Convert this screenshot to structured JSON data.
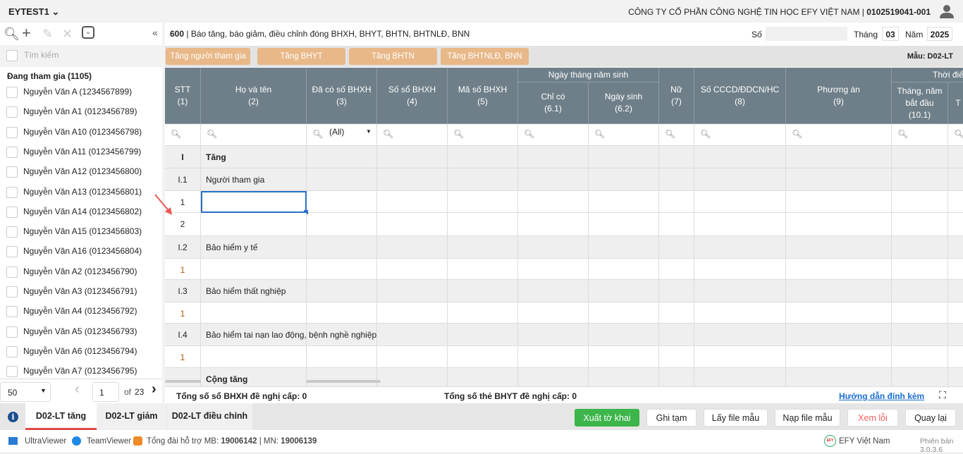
{
  "header": {
    "app_name": "EYTEST1",
    "company": "CÔNG TY CỔ PHẦN CÔNG NGHỆ TIN HỌC EFY VIỆT NAM | ",
    "tax_code": "0102519041-001"
  },
  "sidebar": {
    "search_placeholder": "Tìm kiếm",
    "group": "Đang tham gia (1105)",
    "items": [
      "Nguyễn Văn A (1234567899)",
      "Nguyễn Văn A1 (0123456789)",
      "Nguyễn Văn A10 (0123456798)",
      "Nguyễn Văn A11 (0123456799)",
      "Nguyễn Văn A12 (0123456800)",
      "Nguyễn Văn A13 (0123456801)",
      "Nguyễn Văn A14 (0123456802)",
      "Nguyễn Văn A15 (0123456803)",
      "Nguyễn Văn A16 (0123456804)",
      "Nguyễn Văn A2 (0123456790)",
      "Nguyễn Văn A3 (0123456791)",
      "Nguyễn Văn A4 (0123456792)",
      "Nguyễn Văn A5 (0123456793)",
      "Nguyễn Văn A6 (0123456794)",
      "Nguyễn Văn A7 (0123456795)"
    ],
    "pager": {
      "page_size": "50",
      "page": "1",
      "of_label": "of",
      "total_pages": "23"
    }
  },
  "form": {
    "code": "600",
    "title": " | Báo tăng, báo giảm, điều chỉnh đóng BHXH, BHYT, BHTN, BHTNLĐ, BNN",
    "so_label": "Số",
    "so_value": "",
    "thang_label": "Tháng",
    "thang_value": "03",
    "nam_label": "Năm",
    "nam_value": "2025",
    "mau": "Mẫu: D02-LT"
  },
  "action_tabs": [
    "Tăng người tham gia",
    "Tăng BHYT",
    "Tăng BHTN",
    "Tăng BHTNLĐ, BNN"
  ],
  "table": {
    "group_headers": {
      "dob": "Ngày tháng năm sinh",
      "time": "Thời điểm"
    },
    "columns": [
      [
        "STT",
        "(1)"
      ],
      [
        "Họ và tên",
        "(2)"
      ],
      [
        "Đã có số BHXH",
        "(3)"
      ],
      [
        "Số sổ BHXH",
        "(4)"
      ],
      [
        "Mã số BHXH",
        "(5)"
      ],
      [
        "Chỉ có",
        "(6.1)"
      ],
      [
        "Ngày sinh",
        "(6.2)"
      ],
      [
        "Nữ",
        "(7)"
      ],
      [
        "Số CCCD/ĐDCN/HC",
        "(8)"
      ],
      [
        "Phương án",
        "(9)"
      ],
      [
        "Tháng, năm bắt đầu",
        "(10.1)"
      ],
      [
        "T",
        ""
      ]
    ],
    "filter_all": "(All)",
    "rows": [
      {
        "stt": "I",
        "name": "Tăng",
        "type": "section"
      },
      {
        "stt": "I.1",
        "name": "Người tham gia",
        "type": "sub"
      },
      {
        "stt": "1",
        "name": "",
        "type": "data",
        "selected": true
      },
      {
        "stt": "2",
        "name": "",
        "type": "data"
      },
      {
        "stt": "I.2",
        "name": "Bảo hiểm y tế",
        "type": "sub"
      },
      {
        "stt": "1",
        "name": "",
        "type": "data"
      },
      {
        "stt": "I.3",
        "name": "Bảo hiểm thất nghiệp",
        "type": "sub"
      },
      {
        "stt": "1",
        "name": "",
        "type": "data"
      },
      {
        "stt": "I.4",
        "name": "Bảo hiểm tai nạn lao động, bệnh nghề nghiệp",
        "type": "sub"
      },
      {
        "stt": "1",
        "name": "",
        "type": "data"
      },
      {
        "stt": "",
        "name": "Cộng tăng",
        "type": "section"
      }
    ]
  },
  "summary": {
    "bhxh": "Tổng số sổ BHXH đề nghị cấp: 0",
    "bhyt": "Tổng số thẻ BHYT đề nghị cấp: 0",
    "guide": "Hướng dẫn đính kèm"
  },
  "bottom_tabs": [
    "D02-LT tăng",
    "D02-LT giảm",
    "D02-LT điều chỉnh"
  ],
  "buttons": {
    "export": "Xuất tờ khai",
    "save": "Ghi tạm",
    "get_template": "Lấy file mẫu",
    "load_template": "Nạp file mẫu",
    "errors": "Xem lỗi",
    "back": "Quay lại"
  },
  "status": {
    "ultraviewer": "UltraViewer",
    "teamviewer": "TeamViewer",
    "hotline_label": "Tổng đài hỗ trợ MB: ",
    "mb": "19006142",
    "mn_label": " | MN: ",
    "mn": "19006139",
    "brand": "EFY Việt Nam",
    "version": "Phiên bản 3.0.3.6"
  },
  "colors": {
    "header_bg": "#6e7f89",
    "orange_tab": "#e8b888",
    "export_green": "#3cb54a",
    "error_red": "#e55",
    "link_blue": "#1a6fd1",
    "active_tab_line": "#e04848"
  }
}
